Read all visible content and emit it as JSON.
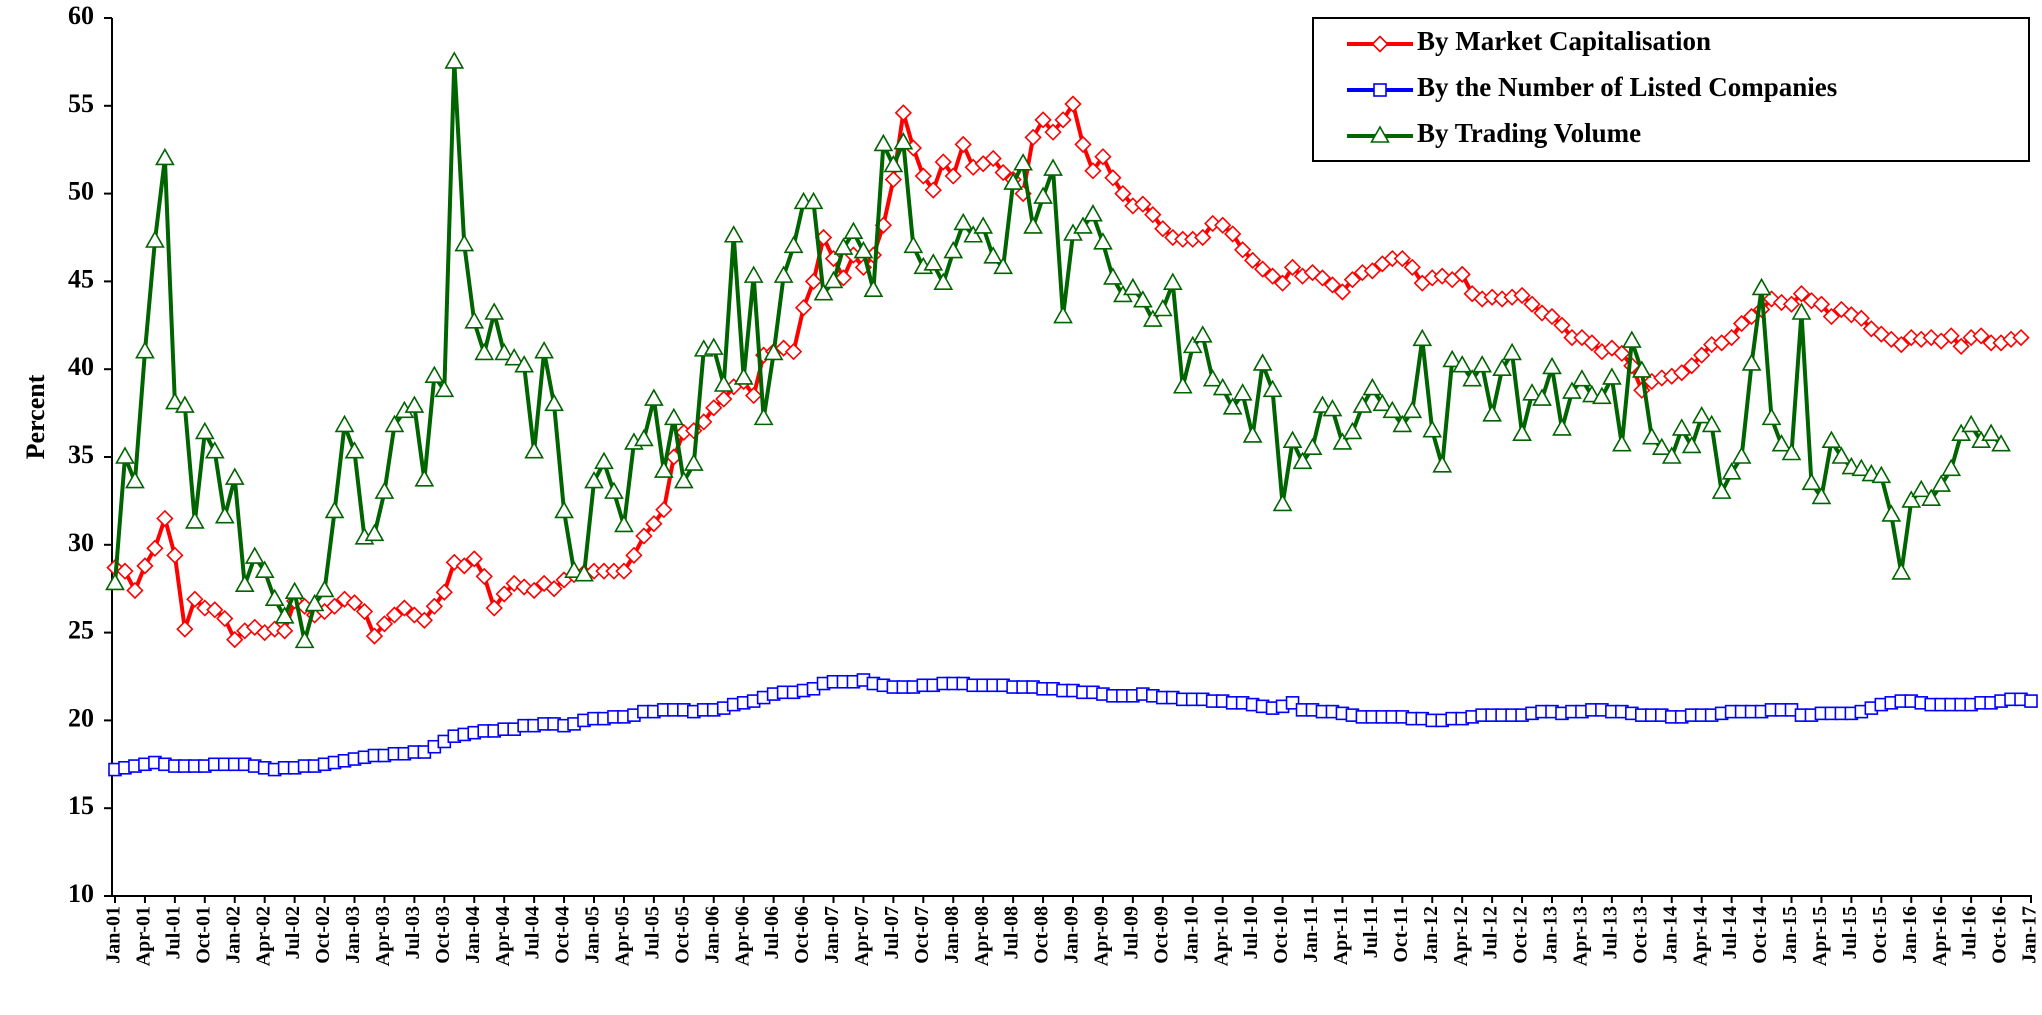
{
  "chart_data": {
    "type": "line",
    "y_label": "Percent",
    "categories": [
      "Jan-01",
      null,
      null,
      "Apr-01",
      null,
      null,
      "Jul-01",
      null,
      null,
      "Oct-01",
      null,
      null,
      "Jan-02",
      null,
      null,
      "Apr-02",
      null,
      null,
      "Jul-02",
      null,
      null,
      "Oct-02",
      null,
      null,
      "Jan-03",
      null,
      null,
      "Apr-03",
      null,
      null,
      "Jul-03",
      null,
      null,
      "Oct-03",
      null,
      null,
      "Jan-04",
      null,
      null,
      "Apr-04",
      null,
      null,
      "Jul-04",
      null,
      null,
      "Oct-04",
      null,
      null,
      "Jan-05",
      null,
      null,
      "Apr-05",
      null,
      null,
      "Jul-05",
      null,
      null,
      "Oct-05",
      null,
      null,
      "Jan-06",
      null,
      null,
      "Apr-06",
      null,
      null,
      "Jul-06",
      null,
      null,
      "Oct-06",
      null,
      null,
      "Jan-07",
      null,
      null,
      "Apr-07",
      null,
      null,
      "Jul-07",
      null,
      null,
      "Oct-07",
      null,
      null,
      "Jan-08",
      null,
      null,
      "Apr-08",
      null,
      null,
      "Jul-08",
      null,
      null,
      "Oct-08",
      null,
      null,
      "Jan-09",
      null,
      null,
      "Apr-09",
      null,
      null,
      "Jul-09",
      null,
      null,
      "Oct-09",
      null,
      null,
      "Jan-10",
      null,
      null,
      "Apr-10",
      null,
      null,
      "Jul-10",
      null,
      null,
      "Oct-10",
      null,
      null,
      "Jan-11",
      null,
      null,
      "Apr-11",
      null,
      null,
      "Jul-11",
      null,
      null,
      "Oct-11",
      null,
      null,
      "Jan-12",
      null,
      null,
      "Apr-12",
      null,
      null,
      "Jul-12",
      null,
      null,
      "Oct-12",
      null,
      null,
      "Jan-13",
      null,
      null,
      "Apr-13",
      null,
      null,
      "Jul-13",
      null,
      null,
      "Oct-13",
      null,
      null,
      "Jan-14",
      null,
      null,
      "Apr-14",
      null,
      null,
      "Jul-14",
      null,
      null,
      "Oct-14",
      null,
      null,
      "Jan-15",
      null,
      null,
      "Apr-15",
      null,
      null,
      "Jul-15",
      null,
      null,
      "Oct-15",
      null,
      null,
      "Jan-16",
      null,
      null,
      "Apr-16",
      null,
      null,
      "Jul-16",
      null,
      null,
      "Oct-16",
      null,
      null,
      "Jan-17"
    ],
    "series": [
      {
        "name": "By Market Capitalisation",
        "color": "#ff0000",
        "marker": "diamond",
        "values": [
          28.7,
          28.5,
          27.4,
          28.8,
          29.8,
          31.5,
          29.4,
          25.2,
          26.9,
          26.4,
          26.3,
          25.8,
          24.6,
          25.1,
          25.3,
          25.0,
          25.2,
          25.1,
          26.8,
          26.5,
          26.0,
          26.2,
          26.5,
          26.9,
          26.7,
          26.2,
          24.8,
          25.5,
          26.0,
          26.4,
          26.0,
          25.7,
          26.5,
          27.3,
          29.0,
          28.8,
          29.2,
          28.2,
          26.4,
          27.2,
          27.8,
          27.6,
          27.4,
          27.8,
          27.5,
          28.0,
          28.3,
          28.4,
          28.5,
          28.5,
          28.5,
          28.5,
          29.4,
          30.5,
          31.2,
          32.0,
          35.0,
          36.4,
          36.5,
          37.0,
          37.8,
          38.3,
          39.0,
          39.3,
          38.5,
          40.8,
          41.0,
          41.2,
          41.0,
          43.5,
          45.0,
          47.5,
          46.3,
          45.2,
          46.5,
          45.8,
          46.5,
          48.2,
          50.8,
          54.6,
          52.6,
          51.0,
          50.2,
          51.8,
          51.0,
          52.8,
          51.5,
          51.7,
          52.0,
          51.2,
          50.8,
          50.0,
          53.2,
          54.2,
          53.5,
          54.2,
          55.1,
          52.8,
          51.3,
          52.1,
          50.9,
          50.0,
          49.3,
          49.4,
          48.8,
          48.0,
          47.5,
          47.4,
          47.4,
          47.5,
          48.3,
          48.2,
          47.7,
          46.8,
          46.2,
          45.7,
          45.3,
          44.9,
          45.8,
          45.3,
          45.5,
          45.2,
          44.8,
          44.4,
          45.1,
          45.5,
          45.6,
          46.0,
          46.3,
          46.3,
          45.8,
          44.9,
          45.2,
          45.3,
          45.1,
          45.4,
          44.3,
          44.0,
          44.1,
          44.0,
          44.1,
          44.2,
          43.7,
          43.2,
          43.0,
          42.5,
          41.8,
          41.8,
          41.5,
          41.0,
          41.2,
          40.9,
          40.2,
          38.8,
          39.3,
          39.5,
          39.6,
          39.8,
          40.2,
          40.8,
          41.4,
          41.5,
          41.8,
          42.6,
          43.0,
          43.4,
          44.0,
          43.8,
          43.7,
          44.3,
          43.9,
          43.7,
          43.0,
          43.4,
          43.1,
          42.9,
          42.3,
          42.0,
          41.7,
          41.4,
          41.8,
          41.7,
          41.8,
          41.6,
          41.9,
          41.3,
          41.8,
          41.9,
          41.5,
          41.5,
          41.7,
          41.8,
          null
        ]
      },
      {
        "name": "By the Number of Listed Companies",
        "color": "#0000ff",
        "marker": "square",
        "values": [
          17.2,
          17.3,
          17.4,
          17.5,
          17.6,
          17.5,
          17.4,
          17.4,
          17.4,
          17.4,
          17.5,
          17.5,
          17.5,
          17.5,
          17.4,
          17.3,
          17.2,
          17.3,
          17.3,
          17.4,
          17.4,
          17.5,
          17.6,
          17.7,
          17.8,
          17.9,
          18.0,
          18.0,
          18.1,
          18.1,
          18.2,
          18.2,
          18.5,
          18.8,
          19.1,
          19.2,
          19.3,
          19.4,
          19.4,
          19.5,
          19.5,
          19.7,
          19.7,
          19.8,
          19.8,
          19.7,
          19.8,
          20.0,
          20.1,
          20.1,
          20.2,
          20.2,
          20.3,
          20.5,
          20.5,
          20.6,
          20.6,
          20.6,
          20.5,
          20.6,
          20.6,
          20.7,
          20.9,
          21.0,
          21.1,
          21.3,
          21.5,
          21.6,
          21.6,
          21.7,
          21.8,
          22.1,
          22.2,
          22.2,
          22.2,
          22.3,
          22.1,
          22.0,
          21.9,
          21.9,
          21.9,
          22.0,
          22.0,
          22.1,
          22.1,
          22.1,
          22.0,
          22.0,
          22.0,
          22.0,
          21.9,
          21.9,
          21.9,
          21.8,
          21.8,
          21.7,
          21.7,
          21.6,
          21.6,
          21.5,
          21.4,
          21.4,
          21.4,
          21.5,
          21.4,
          21.3,
          21.3,
          21.2,
          21.2,
          21.2,
          21.1,
          21.1,
          21.0,
          21.0,
          20.9,
          20.8,
          20.7,
          20.8,
          21.0,
          20.6,
          20.6,
          20.5,
          20.5,
          20.4,
          20.3,
          20.2,
          20.2,
          20.2,
          20.2,
          20.2,
          20.1,
          20.1,
          20.0,
          20.0,
          20.1,
          20.1,
          20.2,
          20.3,
          20.3,
          20.3,
          20.3,
          20.3,
          20.4,
          20.5,
          20.5,
          20.4,
          20.5,
          20.5,
          20.6,
          20.6,
          20.5,
          20.5,
          20.4,
          20.3,
          20.3,
          20.3,
          20.2,
          20.2,
          20.3,
          20.3,
          20.3,
          20.4,
          20.5,
          20.5,
          20.5,
          20.5,
          20.6,
          20.6,
          20.6,
          20.3,
          20.3,
          20.4,
          20.4,
          20.4,
          20.4,
          20.5,
          20.7,
          20.9,
          21.0,
          21.1,
          21.1,
          21.0,
          20.9,
          20.9,
          20.9,
          20.9,
          20.9,
          21.0,
          21.0,
          21.1,
          21.2,
          21.2,
          21.1
        ]
      },
      {
        "name": "By Trading Volume",
        "color": "#006400",
        "marker": "triangle",
        "values": [
          27.8,
          35.0,
          33.6,
          41.0,
          47.3,
          52.0,
          38.1,
          37.9,
          31.3,
          36.4,
          35.3,
          31.6,
          33.8,
          27.7,
          29.3,
          28.5,
          26.9,
          25.9,
          27.3,
          24.5,
          26.6,
          27.4,
          31.9,
          36.8,
          35.3,
          30.4,
          30.6,
          33.0,
          36.8,
          37.6,
          37.9,
          33.7,
          39.6,
          38.8,
          57.5,
          47.1,
          42.7,
          40.9,
          43.2,
          40.9,
          40.6,
          40.2,
          35.3,
          41.0,
          38.0,
          31.9,
          28.5,
          28.3,
          33.6,
          34.7,
          33.0,
          31.1,
          35.8,
          36.0,
          38.3,
          34.2,
          37.2,
          33.6,
          34.6,
          41.1,
          41.2,
          39.1,
          47.6,
          39.5,
          45.3,
          37.2,
          40.9,
          45.3,
          47.0,
          49.5,
          49.5,
          44.3,
          45.0,
          46.9,
          47.8,
          46.7,
          44.5,
          52.8,
          51.6,
          52.9,
          47.0,
          45.8,
          46.0,
          44.9,
          46.7,
          48.3,
          47.6,
          48.1,
          46.4,
          45.8,
          50.6,
          51.7,
          48.1,
          49.8,
          51.4,
          43.0,
          47.7,
          48.1,
          48.8,
          47.2,
          45.2,
          44.2,
          44.6,
          43.9,
          42.8,
          43.4,
          44.9,
          39.0,
          41.3,
          41.9,
          39.4,
          38.9,
          37.8,
          38.6,
          36.2,
          40.3,
          38.8,
          32.3,
          35.9,
          34.7,
          35.5,
          37.9,
          37.7,
          35.8,
          36.4,
          37.9,
          38.9,
          38.0,
          37.6,
          36.8,
          37.6,
          41.7,
          36.5,
          34.5,
          40.5,
          40.2,
          39.4,
          40.2,
          37.4,
          40.0,
          40.9,
          36.3,
          38.6,
          38.3,
          40.1,
          36.6,
          38.7,
          39.4,
          38.5,
          38.4,
          39.5,
          35.7,
          41.6,
          39.9,
          36.1,
          35.5,
          35.0,
          36.6,
          35.6,
          37.3,
          36.8,
          33.0,
          34.1,
          35.0,
          40.3,
          44.6,
          37.2,
          35.7,
          35.2,
          43.2,
          33.5,
          32.7,
          35.9,
          35.0,
          34.4,
          34.3,
          34.0,
          33.9,
          31.7,
          28.4,
          32.5,
          33.1,
          32.6,
          33.4,
          34.3,
          36.3,
          36.8,
          35.9,
          36.3,
          35.7,
          null,
          null,
          null
        ]
      }
    ],
    "ylim": [
      10,
      60
    ],
    "yticks": [
      10,
      15,
      20,
      25,
      30,
      35,
      40,
      45,
      50,
      55,
      60
    ],
    "grid": false,
    "legend": "top-right"
  }
}
